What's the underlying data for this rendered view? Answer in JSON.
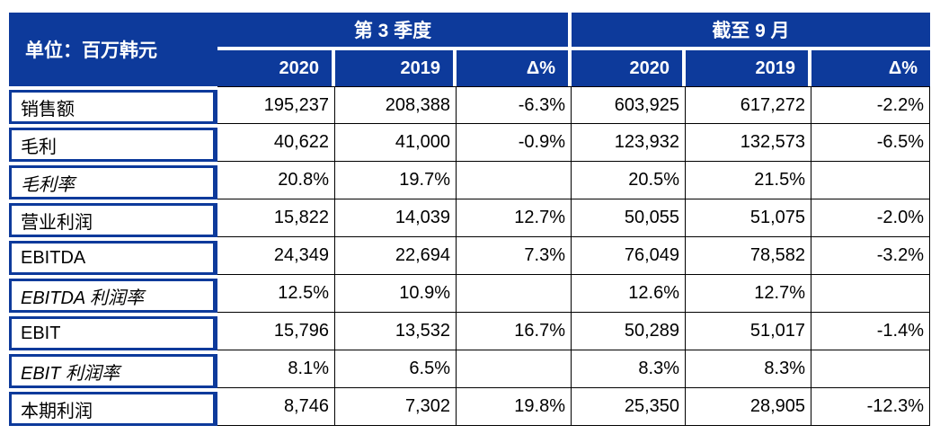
{
  "colors": {
    "header_blue": "#0d3a9b",
    "grid_line": "#000000",
    "header_text": "#ffffff",
    "body_text": "#000000"
  },
  "table": {
    "unit_label": "单位：百万韩元",
    "col_groups": [
      {
        "label": "第 3 季度",
        "columns": [
          "2020",
          "2019",
          "Δ%"
        ]
      },
      {
        "label": "截至 9 月",
        "columns": [
          "2020",
          "2019",
          "Δ%"
        ]
      }
    ],
    "rows": [
      {
        "label": "销售额",
        "italic": false,
        "values": [
          "195,237",
          "208,388",
          "-6.3%",
          "603,925",
          "617,272",
          "-2.2%"
        ]
      },
      {
        "label": "毛利",
        "italic": false,
        "values": [
          "40,622",
          "41,000",
          "-0.9%",
          "123,932",
          "132,573",
          "-6.5%"
        ]
      },
      {
        "label": "毛利率",
        "italic": true,
        "values": [
          "20.8%",
          "19.7%",
          "",
          "20.5%",
          "21.5%",
          ""
        ]
      },
      {
        "label": "营业利润",
        "italic": false,
        "values": [
          "15,822",
          "14,039",
          "12.7%",
          "50,055",
          "51,075",
          "-2.0%"
        ]
      },
      {
        "label": "EBITDA",
        "italic": false,
        "values": [
          "24,349",
          "22,694",
          "7.3%",
          "76,049",
          "78,582",
          "-3.2%"
        ]
      },
      {
        "label": "EBITDA 利润率",
        "italic": true,
        "values": [
          "12.5%",
          "10.9%",
          "",
          "12.6%",
          "12.7%",
          ""
        ]
      },
      {
        "label": "EBIT",
        "italic": false,
        "values": [
          "15,796",
          "13,532",
          "16.7%",
          "50,289",
          "51,017",
          "-1.4%"
        ]
      },
      {
        "label": "EBIT 利润率",
        "italic": true,
        "values": [
          "8.1%",
          "6.5%",
          "",
          "8.3%",
          "8.3%",
          ""
        ]
      },
      {
        "label": "本期利润",
        "italic": false,
        "values": [
          "8,746",
          "7,302",
          "19.8%",
          "25,350",
          "28,905",
          "-12.3%"
        ]
      }
    ]
  }
}
